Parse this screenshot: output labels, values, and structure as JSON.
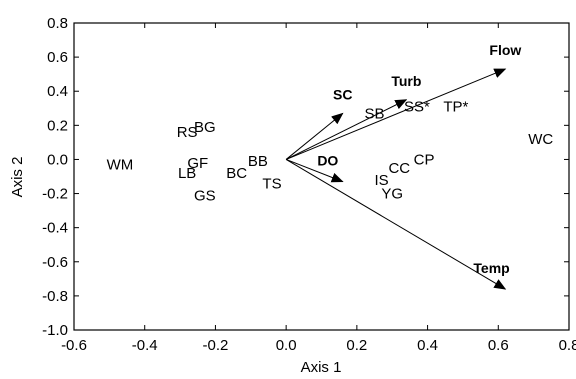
{
  "chart_data": {
    "type": "scatter",
    "xlabel": "Axis 1",
    "ylabel": "Axis 2",
    "xlim": [
      -0.6,
      0.8
    ],
    "ylim": [
      -1.0,
      0.8
    ],
    "xticks": [
      -0.6,
      -0.4,
      -0.2,
      0.0,
      0.2,
      0.4,
      0.6,
      0.8
    ],
    "yticks": [
      -1.0,
      -0.8,
      -0.6,
      -0.4,
      -0.2,
      0.0,
      0.2,
      0.4,
      0.6,
      0.8
    ],
    "xtick_labels": [
      "-0.6",
      "-0.4",
      "-0.2",
      "0.0",
      "0.2",
      "0.4",
      "0.6",
      "0.8"
    ],
    "ytick_labels": [
      "-1.0",
      "-0.8",
      "-0.6",
      "-0.4",
      "-0.2",
      "0.0",
      "0.2",
      "0.4",
      "0.6",
      "0.8"
    ],
    "grid": false,
    "points": [
      {
        "label": "WM",
        "x": -0.47,
        "y": -0.03
      },
      {
        "label": "RS",
        "x": -0.28,
        "y": 0.16
      },
      {
        "label": "BG",
        "x": -0.23,
        "y": 0.19
      },
      {
        "label": "GF",
        "x": -0.25,
        "y": -0.02
      },
      {
        "label": "LB",
        "x": -0.28,
        "y": -0.08
      },
      {
        "label": "GS",
        "x": -0.23,
        "y": -0.21
      },
      {
        "label": "BC",
        "x": -0.14,
        "y": -0.08
      },
      {
        "label": "BB",
        "x": -0.08,
        "y": -0.01
      },
      {
        "label": "TS",
        "x": -0.04,
        "y": -0.14
      },
      {
        "label": "SB",
        "x": 0.25,
        "y": 0.27
      },
      {
        "label": "SS*",
        "x": 0.37,
        "y": 0.31
      },
      {
        "label": "TP*",
        "x": 0.48,
        "y": 0.31
      },
      {
        "label": "IS",
        "x": 0.27,
        "y": -0.12
      },
      {
        "label": "CC",
        "x": 0.32,
        "y": -0.05
      },
      {
        "label": "CP",
        "x": 0.39,
        "y": 0.0
      },
      {
        "label": "YG",
        "x": 0.3,
        "y": -0.2
      },
      {
        "label": "WC",
        "x": 0.72,
        "y": 0.12
      }
    ],
    "vectors": [
      {
        "label": "SC",
        "x": 0.16,
        "y": 0.27
      },
      {
        "label": "Turb",
        "x": 0.34,
        "y": 0.35
      },
      {
        "label": "Flow",
        "x": 0.62,
        "y": 0.53
      },
      {
        "label": "DO",
        "x": 0.16,
        "y": -0.13
      },
      {
        "label": "Temp",
        "x": 0.62,
        "y": -0.76
      }
    ]
  }
}
